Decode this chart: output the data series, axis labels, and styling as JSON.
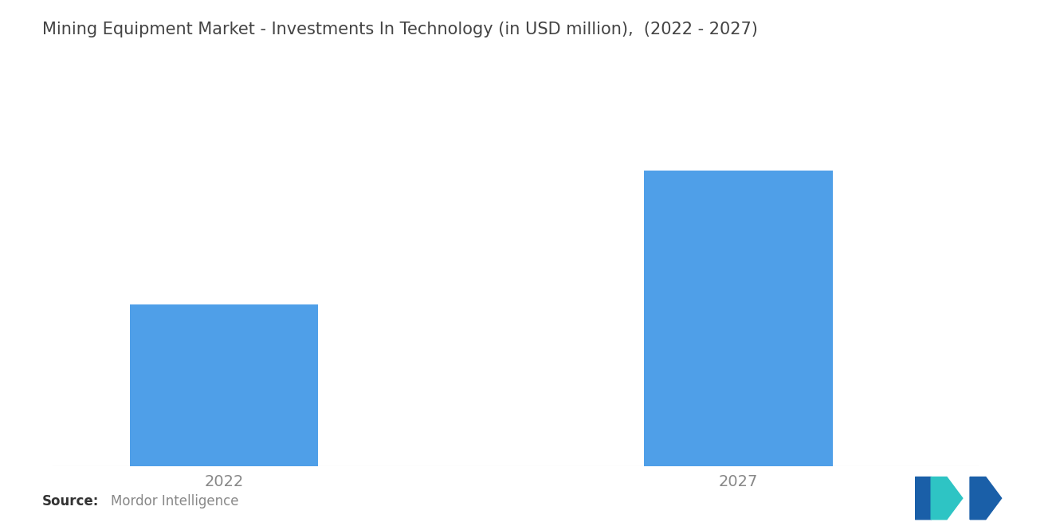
{
  "title": "Mining Equipment Market - Investments In Technology (in USD million),  (2022 - 2027)",
  "categories": [
    "2022",
    "2027"
  ],
  "values": [
    45,
    82
  ],
  "bar_color": "#4F9FE8",
  "background_color": "#ffffff",
  "source_label": "Source:",
  "source_text": "Mordor Intelligence",
  "title_fontsize": 15,
  "tick_fontsize": 14,
  "source_fontsize": 12,
  "ylim": [
    0,
    100
  ],
  "bar_width": 0.55,
  "x_positions": [
    1,
    2.5
  ]
}
